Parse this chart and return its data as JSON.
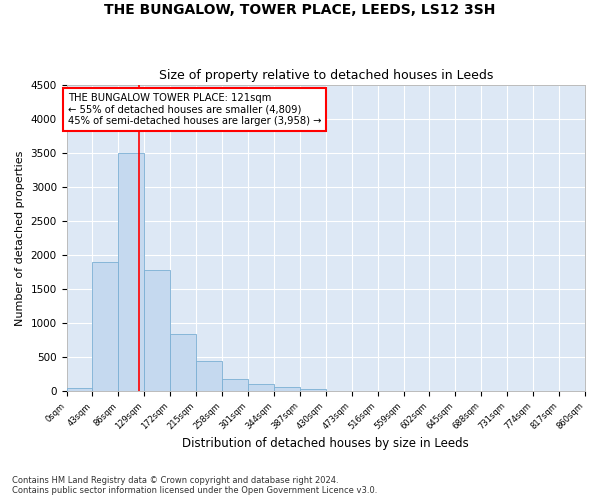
{
  "title1": "THE BUNGALOW, TOWER PLACE, LEEDS, LS12 3SH",
  "title2": "Size of property relative to detached houses in Leeds",
  "xlabel": "Distribution of detached houses by size in Leeds",
  "ylabel": "Number of detached properties",
  "bin_edges": [
    0,
    43,
    86,
    129,
    172,
    215,
    258,
    301,
    344,
    387,
    430,
    473,
    516,
    559,
    602,
    645,
    688,
    731,
    774,
    817,
    860
  ],
  "bar_heights": [
    50,
    1900,
    3500,
    1780,
    840,
    450,
    185,
    100,
    65,
    40,
    0,
    0,
    0,
    0,
    0,
    0,
    0,
    0,
    0,
    0
  ],
  "bar_color": "#c5d9ef",
  "bar_edge_color": "#7bafd4",
  "bg_color": "#dde8f5",
  "grid_color": "#ffffff",
  "property_line_x": 121,
  "annotation_line1": "THE BUNGALOW TOWER PLACE: 121sqm",
  "annotation_line2": "← 55% of detached houses are smaller (4,809)",
  "annotation_line3": "45% of semi-detached houses are larger (3,958) →",
  "ylim_max": 4500,
  "yticks": [
    0,
    500,
    1000,
    1500,
    2000,
    2500,
    3000,
    3500,
    4000,
    4500
  ],
  "footnote1": "Contains HM Land Registry data © Crown copyright and database right 2024.",
  "footnote2": "Contains public sector information licensed under the Open Government Licence v3.0."
}
